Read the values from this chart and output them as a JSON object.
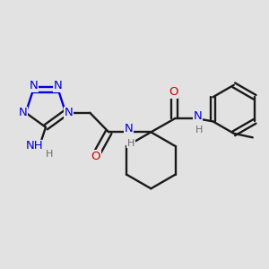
{
  "bg_color": "#e2e2e2",
  "bond_color": "#1a1a1a",
  "N_color": "#0000dd",
  "O_color": "#cc0000",
  "teal_color": "#4a8080",
  "gray_color": "#6a6a6a",
  "lw": 1.7,
  "fs": 9.5,
  "fsh": 8.0,
  "xlim": [
    0,
    10
  ],
  "ylim": [
    0,
    10
  ]
}
